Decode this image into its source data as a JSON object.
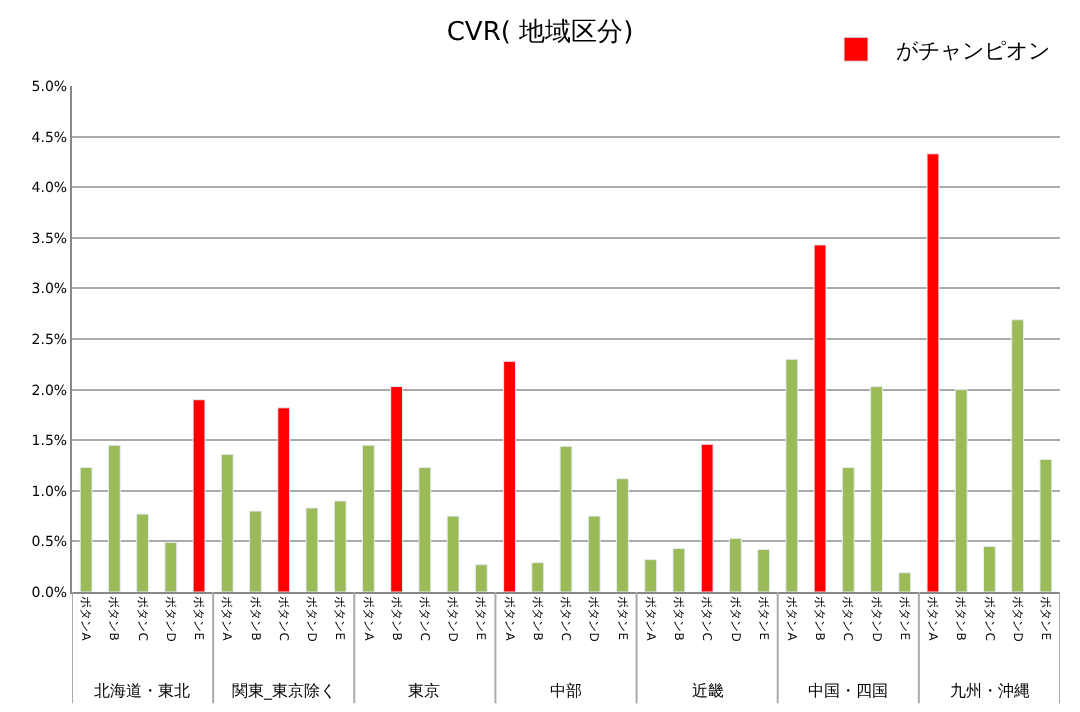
{
  "chart_data": {
    "type": "bar",
    "title": "CVR( 地域区分)",
    "categories": [
      "ボタンA",
      "ボタンB",
      "ボタンC",
      "ボタンD",
      "ボタンE",
      "ボタンA",
      "ボタンB",
      "ボタンC",
      "ボタンD",
      "ボタンE",
      "ボタンA",
      "ボタンB",
      "ボタンC",
      "ボタンD",
      "ボタンE",
      "ボタンA",
      "ボタンB",
      "ボタンC",
      "ボタンD",
      "ボタンE",
      "ボタンA",
      "ボタンB",
      "ボタンC",
      "ボタンD",
      "ボタンE",
      "ボタンA",
      "ボタンB",
      "ボタンC",
      "ボタンD",
      "ボタンE",
      "ボタンA",
      "ボタンB",
      "ボタンC",
      "ボタンD",
      "ボタンE"
    ],
    "series": [
      {
        "color": "#9bbb59",
        "values": [
          1.23,
          1.45,
          0.77,
          0.49,
          null,
          1.36,
          0.8,
          null,
          0.83,
          0.9,
          1.45,
          null,
          1.23,
          0.75,
          0.27,
          null,
          0.29,
          1.44,
          0.75,
          1.12,
          0.32,
          0.43,
          null,
          0.53,
          0.42,
          2.3,
          null,
          1.23,
          2.03,
          0.19,
          null,
          2.0,
          0.45,
          2.69,
          1.31
        ]
      },
      {
        "name": "がチャンピオン",
        "color": "#ff0000",
        "values": [
          null,
          null,
          null,
          null,
          1.9,
          null,
          null,
          1.82,
          null,
          null,
          null,
          2.03,
          null,
          null,
          null,
          2.28,
          null,
          null,
          null,
          null,
          null,
          null,
          1.46,
          null,
          null,
          null,
          3.43,
          null,
          null,
          null,
          4.33,
          null,
          null,
          null,
          null
        ]
      }
    ],
    "annotations": [
      "北海道・東北",
      "関東_東京除く",
      "東京",
      "中部",
      "近畿",
      "中国・四国",
      "九州・沖縄"
    ],
    "ylim": [
      0,
      5.0
    ],
    "yticks": [
      {
        "value": 0,
        "label": "0.0%"
      },
      {
        "value": 0.5,
        "label": "0.5%"
      },
      {
        "value": 1.0,
        "label": "1.0%"
      },
      {
        "value": 1.5,
        "label": "1.5%"
      },
      {
        "value": 2.0,
        "label": "2.0%"
      },
      {
        "value": 2.5,
        "label": "2.5%"
      },
      {
        "value": 3.0,
        "label": "3.0%"
      },
      {
        "value": 3.5,
        "label": "3.5%"
      },
      {
        "value": 4.0,
        "label": "4.0%"
      },
      {
        "value": 4.5,
        "label": "4.5%"
      },
      {
        "value": 5.0,
        "label": "5.0%"
      }
    ],
    "grid": "y",
    "legend": "top right"
  }
}
